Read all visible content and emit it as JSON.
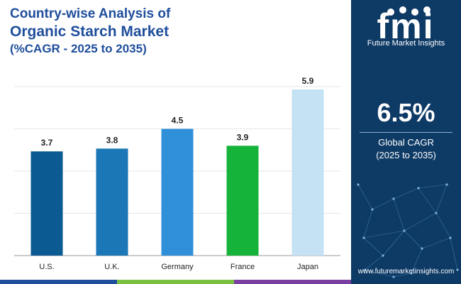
{
  "title": {
    "line1": "Country-wise Analysis of",
    "line2": "Organic Starch Market",
    "line3": "(%CAGR - 2025 to 2035)"
  },
  "chart_data": {
    "type": "bar",
    "categories": [
      "U.S.",
      "U.K.",
      "Germany",
      "France",
      "Japan"
    ],
    "values": [
      3.7,
      3.8,
      4.5,
      3.9,
      5.9
    ],
    "value_labels": [
      "3.7",
      "3.8",
      "4.5",
      "3.9",
      "5.9"
    ],
    "colors": [
      "#0b5a92",
      "#1b77b6",
      "#2f8fd8",
      "#16b33a",
      "#c5e2f4"
    ],
    "ylim": [
      0,
      6
    ],
    "grid": true,
    "title": "",
    "xlabel": "",
    "ylabel": ""
  },
  "side_panel": {
    "logo_letters": "fmi",
    "logo_subtitle": "Future Market Insights",
    "cagr_value": "6.5%",
    "cagr_label_line1": "Global CAGR",
    "cagr_label_line2": "(2025 to 2035)",
    "website": "www.futuremarketinsights.com",
    "background_color": "#0e3a66"
  },
  "bottom_bar_colors": [
    "#1f4e9c",
    "#7ac143",
    "#e8613c",
    "#7a3fa0"
  ]
}
